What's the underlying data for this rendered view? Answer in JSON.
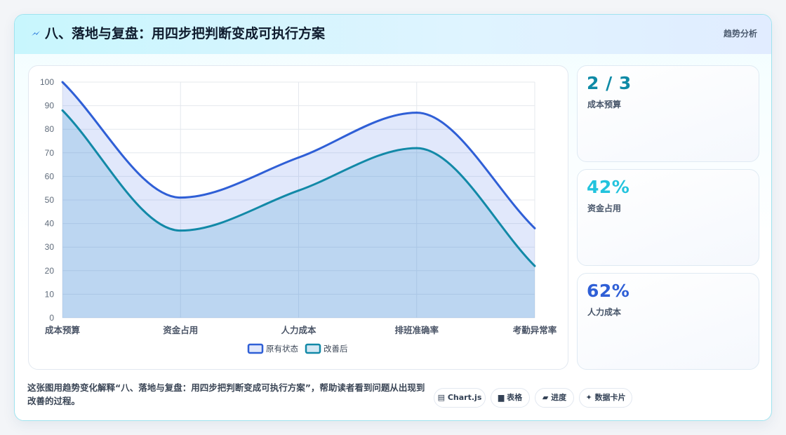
{
  "header": {
    "title": "八、落地与复盘：用四步把判断变成可执行方案",
    "tag": "趋势分析"
  },
  "stats": [
    {
      "value": "2 / 3",
      "label": "成本预算",
      "color": "#0e8aa6"
    },
    {
      "value": "42%",
      "label": "资金占用",
      "color": "#22c3dd"
    },
    {
      "value": "62%",
      "label": "人力成本",
      "color": "#2f5fd6"
    }
  ],
  "caption": "这张图用趋势变化解释“八、落地与复盘：用四步把判断变成可执行方案”，帮助读者看到问题从出现到改善的过程。",
  "chips": [
    {
      "icon": "chart-icon",
      "glyph": "▤",
      "label": "Chart.js"
    },
    {
      "icon": "table-icon",
      "glyph": "▆",
      "label": "表格"
    },
    {
      "icon": "progress-icon",
      "glyph": "▰",
      "label": "进度"
    },
    {
      "icon": "sparkle-icon",
      "glyph": "✦",
      "label": "数据卡片"
    }
  ],
  "chart_data": {
    "type": "area",
    "categories": [
      "成本预算",
      "资金占用",
      "人力成本",
      "排班准确率",
      "考勤异常率"
    ],
    "series": [
      {
        "name": "原有状态",
        "values": [
          100,
          51,
          68,
          87,
          38
        ],
        "color": "#2f5fd6",
        "fill": "rgba(90,130,235,0.18)"
      },
      {
        "name": "改善后",
        "values": [
          88,
          37,
          54,
          72,
          22
        ],
        "color": "#1289a7",
        "fill": "rgba(60,150,205,0.22)"
      }
    ],
    "ylim": [
      0,
      100
    ],
    "yticks": [
      0,
      10,
      20,
      30,
      40,
      50,
      60,
      70,
      80,
      90,
      100
    ],
    "grid": true,
    "legend": "bottom"
  }
}
